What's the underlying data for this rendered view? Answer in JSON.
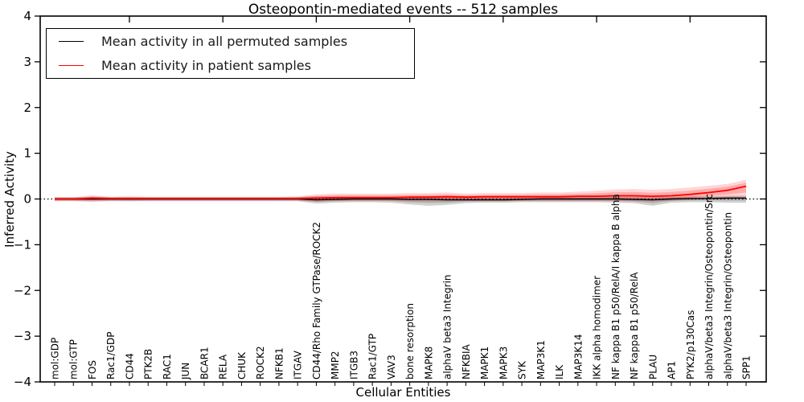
{
  "title": "Osteopontin-mediated events -- 512 samples",
  "legend": {
    "items": [
      {
        "label": "Mean activity in all permuted samples",
        "color": "#000000"
      },
      {
        "label": "Mean activity in patient samples",
        "color": "#ff0000"
      }
    ]
  },
  "axes": {
    "xlabel": "Cellular Entities",
    "ylabel": "Inferred Activity",
    "ytick_labels": [
      "4",
      "3",
      "2",
      "1",
      "0",
      "−1",
      "−2",
      "−3",
      "−4"
    ]
  },
  "colors": {
    "permuted_line": "#000000",
    "patient_line": "#ff0000",
    "permuted_band": "#808080",
    "patient_band": "#ff0000",
    "frame": "#000000"
  },
  "chart_data": {
    "type": "line",
    "title": "Osteopontin-mediated events -- 512 samples",
    "xlabel": "Cellular Entities",
    "ylabel": "Inferred Activity",
    "ylim": [
      -4,
      4
    ],
    "yticks": [
      4,
      3,
      2,
      1,
      0,
      -1,
      -2,
      -3,
      -4
    ],
    "grid": false,
    "zero_line": true,
    "legend_position": "upper left",
    "x_major_tick_every": 5,
    "categories": [
      "mol:GDP",
      "mol:GTP",
      "FOS",
      "Rac1/GDP",
      "CD44",
      "PTK2B",
      "RAC1",
      "JUN",
      "BCAR1",
      "RELA",
      "CHUK",
      "ROCK2",
      "NFKB1",
      "ITGAV",
      "CD44/Rho Family GTPase/ROCK2",
      "MMP2",
      "ITGB3",
      "Rac1/GTP",
      "VAV3",
      "bone resorption",
      "MAPK8",
      "alphaV beta3 Integrin",
      "NFKBIA",
      "MAPK1",
      "MAPK3",
      "SYK",
      "MAP3K1",
      "ILK",
      "MAP3K14",
      "IKK alpha homodimer",
      "NF kappa B1 p50/RelA/I kappa B alpha",
      "NF kappa B1 p50/RelA",
      "PLAU",
      "AP1",
      "PYK2/p130Cas",
      "alphaV/beta3 Integrin/Osteopontin/Src",
      "alphaV/beta3 Integrin/Osteopontin",
      "SPP1"
    ],
    "series": [
      {
        "name": "Mean activity in all permuted samples",
        "color": "#000000",
        "values": [
          0,
          0,
          0,
          0,
          0,
          0,
          0,
          0,
          0,
          0,
          0,
          0,
          0,
          0,
          -0.02,
          -0.01,
          0,
          0,
          0,
          -0.01,
          -0.01,
          -0.02,
          -0.02,
          -0.02,
          -0.02,
          -0.01,
          0,
          0,
          0,
          0,
          0,
          -0.01,
          -0.02,
          0,
          0.01,
          0.01,
          0.02,
          0.02
        ],
        "band_upper": [
          0.04,
          0.04,
          0.04,
          0.04,
          0.04,
          0.04,
          0.04,
          0.04,
          0.04,
          0.04,
          0.04,
          0.04,
          0.04,
          0.04,
          0.06,
          0.05,
          0.05,
          0.05,
          0.05,
          0.06,
          0.06,
          0.05,
          0.05,
          0.05,
          0.05,
          0.05,
          0.05,
          0.05,
          0.05,
          0.05,
          0.05,
          0.05,
          0.05,
          0.05,
          0.06,
          0.06,
          0.07,
          0.07
        ],
        "band_lower": [
          -0.05,
          -0.05,
          -0.05,
          -0.05,
          -0.05,
          -0.05,
          -0.05,
          -0.05,
          -0.05,
          -0.05,
          -0.05,
          -0.05,
          -0.05,
          -0.05,
          -0.1,
          -0.08,
          -0.07,
          -0.07,
          -0.08,
          -0.12,
          -0.15,
          -0.13,
          -0.09,
          -0.08,
          -0.08,
          -0.07,
          -0.07,
          -0.07,
          -0.07,
          -0.07,
          -0.08,
          -0.09,
          -0.15,
          -0.08,
          -0.07,
          -0.07,
          -0.08,
          -0.08
        ]
      },
      {
        "name": "Mean activity in patient samples",
        "color": "#ff0000",
        "values": [
          0,
          0,
          0.02,
          0.01,
          0.01,
          0.01,
          0.01,
          0.01,
          0.01,
          0.01,
          0.01,
          0.01,
          0.01,
          0.01,
          0.02,
          0.03,
          0.03,
          0.03,
          0.03,
          0.04,
          0.04,
          0.05,
          0.04,
          0.05,
          0.05,
          0.05,
          0.05,
          0.05,
          0.06,
          0.06,
          0.07,
          0.07,
          0.06,
          0.07,
          0.1,
          0.14,
          0.19,
          0.28
        ],
        "band_upper": [
          0.04,
          0.04,
          0.08,
          0.05,
          0.06,
          0.05,
          0.05,
          0.05,
          0.05,
          0.05,
          0.05,
          0.05,
          0.05,
          0.06,
          0.1,
          0.12,
          0.12,
          0.12,
          0.12,
          0.13,
          0.13,
          0.14,
          0.12,
          0.13,
          0.13,
          0.13,
          0.14,
          0.14,
          0.16,
          0.18,
          0.21,
          0.22,
          0.2,
          0.22,
          0.25,
          0.29,
          0.33,
          0.42
        ],
        "band_lower": [
          -0.04,
          -0.04,
          -0.07,
          -0.04,
          -0.05,
          -0.04,
          -0.04,
          -0.04,
          -0.04,
          -0.04,
          -0.04,
          -0.04,
          -0.04,
          -0.04,
          -0.06,
          -0.05,
          -0.05,
          -0.05,
          -0.05,
          -0.05,
          -0.05,
          -0.05,
          -0.05,
          -0.05,
          -0.05,
          -0.05,
          -0.05,
          -0.05,
          -0.05,
          -0.05,
          -0.05,
          -0.05,
          -0.05,
          -0.04,
          -0.02,
          0.0,
          0.02,
          0.03
        ]
      }
    ]
  }
}
